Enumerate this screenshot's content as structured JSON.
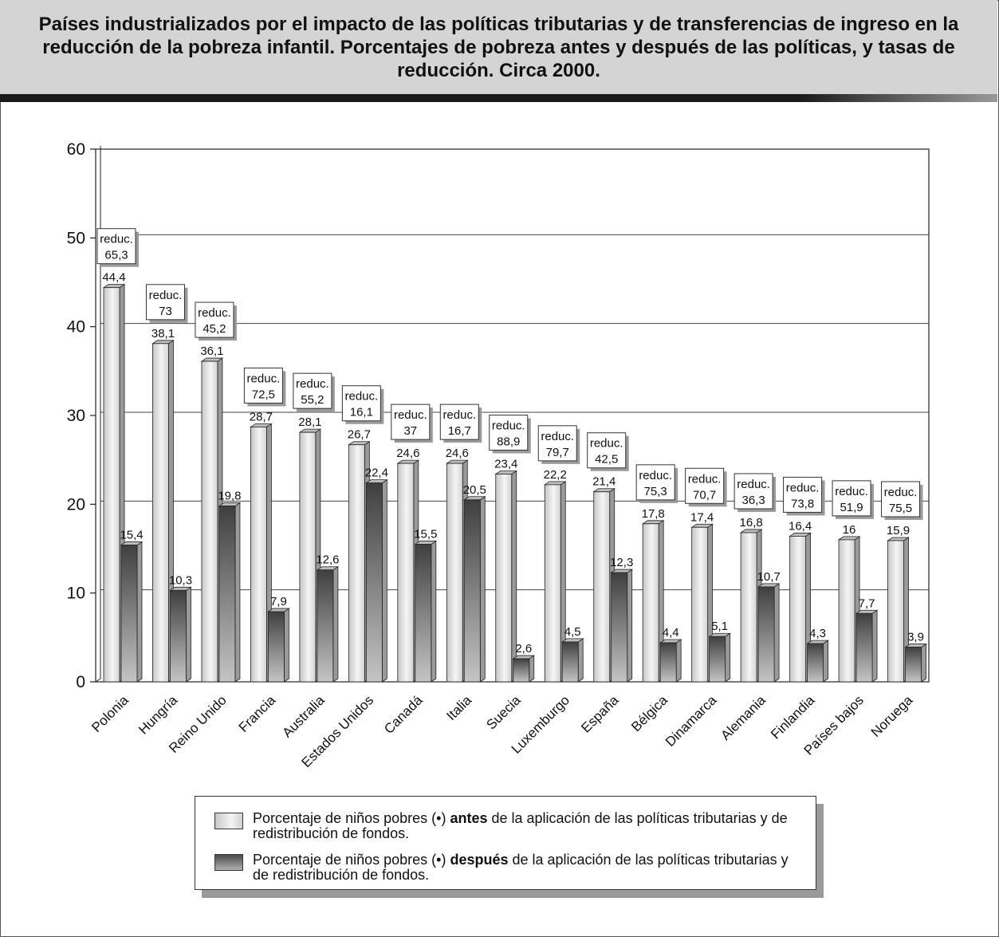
{
  "title": "Países industrializados por el impacto de las políticas tributarias y de transferencias de ingreso en la reducción de la pobreza infantil. Porcentajes de pobreza antes y después de las políticas, y tasas de reducción. Circa 2000.",
  "legend": {
    "before_pre": "Porcentaje de niños pobres (•) ",
    "before_bold": "antes",
    "before_post": " de la aplicación de las políticas tributarias y de redistribución de fondos.",
    "after_pre": "Porcentaje de niños pobres (•) ",
    "after_bold": "después",
    "after_post": " de la aplicación de las políticas tributarias y de redistribución de fondos."
  },
  "colors": {
    "before_bar": "#e6e6e6",
    "after_bar": "#6f6f6f",
    "title_band": "#d4d4d4",
    "gridline": "#444444"
  },
  "chart_data": {
    "type": "bar",
    "ylim": [
      0,
      60
    ],
    "yticks": [
      "0",
      "10",
      "20",
      "30",
      "40",
      "50",
      "60"
    ],
    "grid": true,
    "legend_position": "bottom",
    "reduction_prefix": "reduc.",
    "categories": [
      "Polonia",
      "Hungría",
      "Reino Unido",
      "Francia",
      "Australia",
      "Estados Unidos",
      "Canadá",
      "Italia",
      "Suecia",
      "Luxemburgo",
      "España",
      "Bélgica",
      "Dinamarca",
      "Alemania",
      "Finlandia",
      "Países bajos",
      "Noruega"
    ],
    "series": [
      {
        "values": [
          44.4,
          38.1,
          36.1,
          28.7,
          28.1,
          26.7,
          24.6,
          24.6,
          23.4,
          22.2,
          21.4,
          17.8,
          17.4,
          16.8,
          16.4,
          16,
          15.9
        ],
        "labels": [
          "44,4",
          "38,1",
          "36,1",
          "28,7",
          "28,1",
          "26,7",
          "24,6",
          "24,6",
          "23,4",
          "22,2",
          "21,4",
          "17,8",
          "17,4",
          "16,8",
          "16,4",
          "16",
          "15,9"
        ]
      },
      {
        "values": [
          15.4,
          10.3,
          19.8,
          7.9,
          12.6,
          22.4,
          15.5,
          20.5,
          2.6,
          4.5,
          12.3,
          4.4,
          5.1,
          10.7,
          4.3,
          7.7,
          3.9
        ],
        "labels": [
          "15,4",
          "10,3",
          "19,8",
          "7,9",
          "12,6",
          "22,4",
          "15,5",
          "20,5",
          "2,6",
          "4,5",
          "12,3",
          "4,4",
          "5,1",
          "10,7",
          "4,3",
          "7,7",
          "3,9"
        ]
      }
    ],
    "reductions": {
      "values": [
        65.3,
        73,
        45.2,
        72.5,
        55.2,
        16.1,
        37,
        16.7,
        88.9,
        79.7,
        42.5,
        75.3,
        70.7,
        36.3,
        73.8,
        51.9,
        75.5
      ],
      "labels": [
        "65,3",
        "73",
        "45,2",
        "72,5",
        "55,2",
        "16,1",
        "37",
        "16,7",
        "88,9",
        "79,7",
        "42,5",
        "75,3",
        "70,7",
        "36,3",
        "73,8",
        "51,9",
        "75,5"
      ]
    }
  }
}
